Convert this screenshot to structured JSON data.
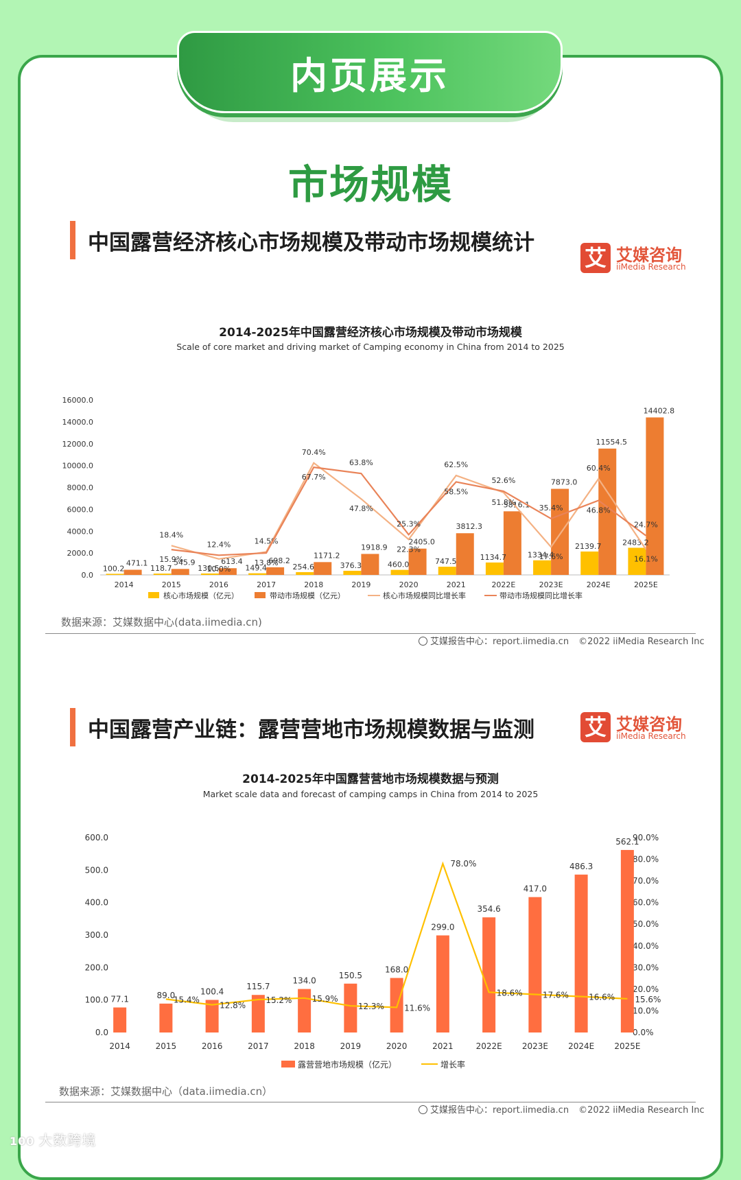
{
  "banner": {
    "label": "内页展示"
  },
  "section": {
    "title": "市场规模"
  },
  "logo": {
    "mark": "艾",
    "cn": "艾媒咨询",
    "en": "iiMedia Research"
  },
  "chart1": {
    "heading": "中国露营经济核心市场规模及带动市场规模统计",
    "source": "数据来源：艾媒数据中心(data.iimedia.cn)",
    "footer_site": "艾媒报告中心：report.iimedia.cn",
    "footer_copy": "©2022  iiMedia Research  Inc"
  },
  "chart2": {
    "heading": "中国露营产业链：露营营地市场规模数据与监测",
    "source": "数据来源：艾媒数据中心（data.iimedia.cn）",
    "footer_site": "艾媒报告中心：report.iimedia.cn",
    "footer_copy": "©2022  iiMedia Research  Inc"
  },
  "watermark": {
    "logo": "100",
    "text": "大数跨境"
  },
  "chart_data": [
    {
      "type": "bar",
      "title": "2014-2025年中国露营经济核心市场规模及带动市场规模",
      "subtitle": "Scale of core market and driving market of Camping economy in China from 2014 to 2025",
      "categories": [
        "2014",
        "2015",
        "2016",
        "2017",
        "2018",
        "2019",
        "2020",
        "2021",
        "2022E",
        "2023E",
        "2024E",
        "2025E"
      ],
      "series": [
        {
          "name": "核心市场规模（亿元）",
          "kind": "bar",
          "color": "#ffc000",
          "values": [
            100.2,
            118.7,
            130.5,
            149.4,
            254.6,
            376.3,
            460.0,
            747.5,
            1134.7,
            1334.4,
            2139.7,
            2483.2
          ],
          "labels": [
            "100.2",
            "118.7",
            "130.5",
            "149.4",
            "254.6",
            "376.3",
            "460.0",
            "747.5",
            "1134.7",
            "1334.4",
            "2139.7",
            "2483.2"
          ]
        },
        {
          "name": "带动市场规模（亿元）",
          "kind": "bar",
          "color": "#ed7d31",
          "values": [
            471.1,
            545.9,
            613.4,
            698.2,
            1171.2,
            1918.9,
            2405.0,
            3812.3,
            5816.1,
            7873.0,
            11554.5,
            14402.8
          ],
          "labels": [
            "471.1",
            "545.9",
            "613.4",
            "698.2",
            "1171.2",
            "1918.9",
            "2405.0",
            "3812.3",
            "5816.1",
            "7873.0",
            "11554.5",
            "14402.8"
          ]
        },
        {
          "name": "核心市场规模同比增长率",
          "kind": "line",
          "color": "#f4b183",
          "values": [
            null,
            18.4,
            10.0,
            14.5,
            70.4,
            47.8,
            22.3,
            62.5,
            51.8,
            17.6,
            60.4,
            16.1
          ],
          "labels": [
            "",
            "18.4%",
            "10.0%",
            "14.5%",
            "70.4%",
            "47.8%",
            "22.3%",
            "62.5%",
            "51.8%",
            "17.6%",
            "60.4%",
            "16.1%"
          ]
        },
        {
          "name": "带动市场规模同比增长率",
          "kind": "line",
          "color": "#e98358",
          "values": [
            null,
            15.9,
            12.4,
            13.8,
            67.7,
            63.8,
            25.3,
            58.5,
            52.6,
            35.4,
            46.8,
            24.7
          ],
          "labels": [
            "",
            "15.9%",
            "12.4%",
            "13.8%",
            "67.7%",
            "63.8%",
            "25.3%",
            "58.5%",
            "52.6%",
            "35.4%",
            "46.8%",
            "24.7%"
          ]
        }
      ],
      "yticks": [
        "0.0",
        "2000.0",
        "4000.0",
        "6000.0",
        "8000.0",
        "10000.0",
        "12000.0",
        "14000.0",
        "16000.0"
      ],
      "ylim": [
        0,
        16000
      ],
      "rate_ylim": [
        0,
        110
      ],
      "legend_position": "bottom"
    },
    {
      "type": "bar",
      "title": "2014-2025年中国露营营地市场规模数据与预测",
      "subtitle": "Market scale data and forecast of camping camps in China from 2014 to 2025",
      "categories": [
        "2014",
        "2015",
        "2016",
        "2017",
        "2018",
        "2019",
        "2020",
        "2021",
        "2022E",
        "2023E",
        "2024E",
        "2025E"
      ],
      "series": [
        {
          "name": "露营营地市场规模（亿元）",
          "kind": "bar",
          "color": "#ff6e40",
          "values": [
            77.1,
            89.0,
            100.4,
            115.7,
            134.0,
            150.5,
            168.0,
            299.0,
            354.6,
            417.0,
            486.3,
            562.1
          ],
          "labels": [
            "77.1",
            "89.0",
            "100.4",
            "115.7",
            "134.0",
            "150.5",
            "168.0",
            "299.0",
            "354.6",
            "417.0",
            "486.3",
            "562.1"
          ]
        },
        {
          "name": "增长率",
          "kind": "line",
          "color": "#ffc000",
          "values": [
            null,
            15.4,
            12.8,
            15.2,
            15.9,
            12.3,
            11.6,
            78.0,
            18.6,
            17.6,
            16.6,
            15.6
          ],
          "labels": [
            "",
            "15.4%",
            "12.8%",
            "15.2%",
            "15.9%",
            "12.3%",
            "11.6%",
            "78.0%",
            "18.6%",
            "17.6%",
            "16.6%",
            "15.6%"
          ]
        }
      ],
      "yticks": [
        "0.0",
        "100.0",
        "200.0",
        "300.0",
        "400.0",
        "500.0",
        "600.0"
      ],
      "ylim": [
        0,
        600
      ],
      "y2ticks": [
        "0.0%",
        "10.0%",
        "20.0%",
        "30.0%",
        "40.0%",
        "50.0%",
        "60.0%",
        "70.0%",
        "80.0%",
        "90.0%"
      ],
      "y2lim": [
        0,
        90
      ],
      "legend_position": "bottom"
    }
  ]
}
